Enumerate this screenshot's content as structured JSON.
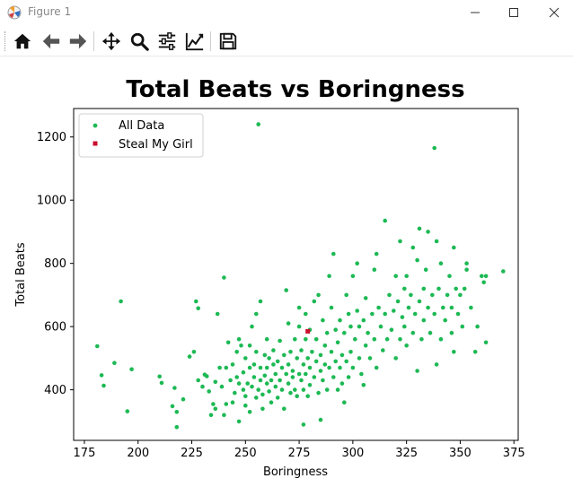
{
  "window": {
    "title": "Figure 1"
  },
  "icons": {
    "app": "matplotlib-icon",
    "minimize": "minimize-icon",
    "maximize": "maximize-icon",
    "close": "close-icon"
  },
  "toolbar": {
    "items": [
      "home-icon",
      "back-arrow-icon",
      "forward-arrow-icon",
      "pan-icon",
      "zoom-icon",
      "subplots-icon",
      "edit-axis-icon",
      "save-icon"
    ]
  },
  "colors": {
    "all_data": "#1db954",
    "steal_my_girl": "#c8102e"
  },
  "chart_data": {
    "type": "scatter",
    "title": "Total Beats vs Boringness",
    "xlabel": "Boringness",
    "ylabel": "Total Beats",
    "xlim": [
      170,
      377
    ],
    "ylim": [
      240,
      1290
    ],
    "xticks": [
      175,
      200,
      225,
      250,
      275,
      300,
      325,
      350,
      375
    ],
    "yticks": [
      400,
      600,
      800,
      1000,
      1200
    ],
    "legend_position": "top-left",
    "series": [
      {
        "name": "All Data",
        "points": [
          [
            181,
            538
          ],
          [
            183,
            446
          ],
          [
            184,
            413
          ],
          [
            189,
            485
          ],
          [
            192,
            680
          ],
          [
            195,
            332
          ],
          [
            197,
            465
          ],
          [
            210,
            442
          ],
          [
            211,
            422
          ],
          [
            216,
            348
          ],
          [
            217,
            406
          ],
          [
            218,
            330
          ],
          [
            218,
            282
          ],
          [
            221,
            370
          ],
          [
            224,
            505
          ],
          [
            226,
            520
          ],
          [
            227,
            680
          ],
          [
            228,
            658
          ],
          [
            228,
            430
          ],
          [
            230,
            410
          ],
          [
            231,
            448
          ],
          [
            232,
            443
          ],
          [
            233,
            395
          ],
          [
            234,
            320
          ],
          [
            235,
            355
          ],
          [
            236,
            340
          ],
          [
            236,
            425
          ],
          [
            237,
            640
          ],
          [
            238,
            470
          ],
          [
            239,
            410
          ],
          [
            240,
            755
          ],
          [
            240,
            320
          ],
          [
            241,
            355
          ],
          [
            241,
            470
          ],
          [
            242,
            550
          ],
          [
            243,
            430
          ],
          [
            244,
            360
          ],
          [
            244,
            480
          ],
          [
            245,
            390
          ],
          [
            246,
            520
          ],
          [
            246,
            440
          ],
          [
            247,
            300
          ],
          [
            247,
            420
          ],
          [
            247,
            560
          ],
          [
            248,
            540
          ],
          [
            249,
            400
          ],
          [
            249,
            455
          ],
          [
            250,
            350
          ],
          [
            250,
            380
          ],
          [
            250,
            500
          ],
          [
            251,
            420
          ],
          [
            252,
            470
          ],
          [
            252,
            540
          ],
          [
            252,
            330
          ],
          [
            253,
            600
          ],
          [
            253,
            410
          ],
          [
            254,
            440
          ],
          [
            254,
            480
          ],
          [
            255,
            375
          ],
          [
            255,
            520
          ],
          [
            255,
            640
          ],
          [
            256,
            1240
          ],
          [
            256,
            400
          ],
          [
            257,
            430
          ],
          [
            257,
            470
          ],
          [
            257,
            680
          ],
          [
            258,
            340
          ],
          [
            258,
            385
          ],
          [
            259,
            510
          ],
          [
            259,
            445
          ],
          [
            260,
            420
          ],
          [
            260,
            560
          ],
          [
            260,
            470
          ],
          [
            261,
            395
          ],
          [
            261,
            500
          ],
          [
            262,
            430
          ],
          [
            262,
            360
          ],
          [
            263,
            480
          ],
          [
            263,
            525
          ],
          [
            264,
            410
          ],
          [
            264,
            450
          ],
          [
            265,
            375
          ],
          [
            265,
            490
          ],
          [
            266,
            430
          ],
          [
            266,
            555
          ],
          [
            267,
            400
          ],
          [
            267,
            470
          ],
          [
            268,
            510
          ],
          [
            268,
            340
          ],
          [
            269,
            715
          ],
          [
            269,
            450
          ],
          [
            270,
            420
          ],
          [
            270,
            480
          ],
          [
            270,
            610
          ],
          [
            271,
            390
          ],
          [
            271,
            520
          ],
          [
            272,
            440
          ],
          [
            272,
            460
          ],
          [
            273,
            560
          ],
          [
            273,
            400
          ],
          [
            274,
            500
          ],
          [
            274,
            380
          ],
          [
            275,
            450
          ],
          [
            275,
            600
          ],
          [
            275,
            660
          ],
          [
            276,
            430
          ],
          [
            276,
            525
          ],
          [
            277,
            480
          ],
          [
            277,
            290
          ],
          [
            277,
            400
          ],
          [
            278,
            640
          ],
          [
            278,
            560
          ],
          [
            278,
            450
          ],
          [
            279,
            500
          ],
          [
            279,
            380
          ],
          [
            280,
            470
          ],
          [
            280,
            590
          ],
          [
            280,
            415
          ],
          [
            281,
            520
          ],
          [
            282,
            440
          ],
          [
            282,
            680
          ],
          [
            283,
            490
          ],
          [
            283,
            560
          ],
          [
            284,
            390
          ],
          [
            284,
            700
          ],
          [
            285,
            460
          ],
          [
            285,
            510
          ],
          [
            285,
            305
          ],
          [
            286,
            620
          ],
          [
            286,
            430
          ],
          [
            287,
            480
          ],
          [
            287,
            540
          ],
          [
            288,
            400
          ],
          [
            288,
            580
          ],
          [
            289,
            470
          ],
          [
            289,
            760
          ],
          [
            290,
            520
          ],
          [
            290,
            660
          ],
          [
            291,
            440
          ],
          [
            291,
            830
          ],
          [
            292,
            590
          ],
          [
            292,
            490
          ],
          [
            293,
            400
          ],
          [
            293,
            550
          ],
          [
            294,
            470
          ],
          [
            294,
            620
          ],
          [
            295,
            510
          ],
          [
            295,
            420
          ],
          [
            296,
            580
          ],
          [
            296,
            360
          ],
          [
            297,
            700
          ],
          [
            297,
            490
          ],
          [
            298,
            640
          ],
          [
            298,
            440
          ],
          [
            299,
            520
          ],
          [
            299,
            600
          ],
          [
            300,
            470
          ],
          [
            300,
            760
          ],
          [
            301,
            560
          ],
          [
            302,
            650
          ],
          [
            302,
            800
          ],
          [
            303,
            500
          ],
          [
            303,
            600
          ],
          [
            304,
            450
          ],
          [
            305,
            620
          ],
          [
            305,
            415
          ],
          [
            306,
            540
          ],
          [
            306,
            690
          ],
          [
            307,
            580
          ],
          [
            308,
            500
          ],
          [
            309,
            640
          ],
          [
            310,
            780
          ],
          [
            310,
            560
          ],
          [
            311,
            830
          ],
          [
            311,
            470
          ],
          [
            312,
            660
          ],
          [
            313,
            600
          ],
          [
            314,
            525
          ],
          [
            315,
            935
          ],
          [
            315,
            640
          ],
          [
            316,
            560
          ],
          [
            317,
            700
          ],
          [
            318,
            590
          ],
          [
            319,
            650
          ],
          [
            320,
            500
          ],
          [
            320,
            760
          ],
          [
            321,
            680
          ],
          [
            322,
            560
          ],
          [
            322,
            870
          ],
          [
            323,
            630
          ],
          [
            324,
            720
          ],
          [
            324,
            600
          ],
          [
            325,
            760
          ],
          [
            325,
            540
          ],
          [
            326,
            660
          ],
          [
            327,
            700
          ],
          [
            328,
            580
          ],
          [
            328,
            850
          ],
          [
            329,
            640
          ],
          [
            330,
            810
          ],
          [
            330,
            460
          ],
          [
            331,
            910
          ],
          [
            331,
            680
          ],
          [
            332,
            560
          ],
          [
            333,
            720
          ],
          [
            333,
            620
          ],
          [
            334,
            780
          ],
          [
            335,
            900
          ],
          [
            335,
            660
          ],
          [
            336,
            580
          ],
          [
            337,
            700
          ],
          [
            338,
            1165
          ],
          [
            338,
            640
          ],
          [
            339,
            870
          ],
          [
            339,
            480
          ],
          [
            340,
            720
          ],
          [
            341,
            560
          ],
          [
            341,
            800
          ],
          [
            342,
            660
          ],
          [
            343,
            620
          ],
          [
            344,
            700
          ],
          [
            345,
            760
          ],
          [
            346,
            580
          ],
          [
            346,
            660
          ],
          [
            347,
            850
          ],
          [
            347,
            520
          ],
          [
            348,
            720
          ],
          [
            349,
            640
          ],
          [
            350,
            700
          ],
          [
            351,
            600
          ],
          [
            352,
            720
          ],
          [
            353,
            780
          ],
          [
            353,
            800
          ],
          [
            355,
            660
          ],
          [
            357,
            520
          ],
          [
            358,
            600
          ],
          [
            360,
            760
          ],
          [
            361,
            740
          ],
          [
            362,
            550
          ],
          [
            362,
            760
          ],
          [
            370,
            775
          ]
        ]
      },
      {
        "name": "Steal My Girl",
        "points": [
          [
            279,
            585
          ]
        ]
      }
    ]
  }
}
